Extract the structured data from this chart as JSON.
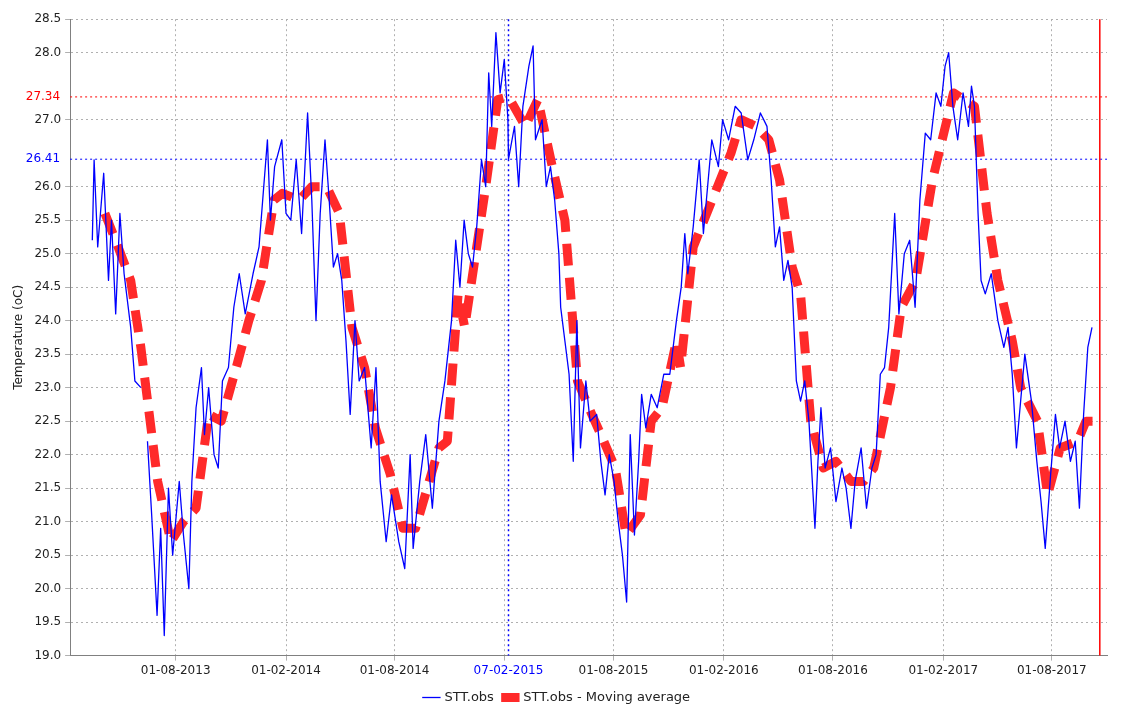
{
  "chart_data": {
    "type": "line",
    "ylabel": "Temperature (oC)",
    "xlim": [
      "2013-02-06",
      "2017-11-01"
    ],
    "ylim": [
      19,
      28.5
    ],
    "xticks": [
      {
        "value": "2013-08-01",
        "label": "01-08-2013"
      },
      {
        "value": "2014-02-01",
        "label": "01-02-2014"
      },
      {
        "value": "2014-08-01",
        "label": "01-08-2014"
      },
      {
        "value": "2015-02-01",
        "label": null
      },
      {
        "value": "2015-08-01",
        "label": "01-08-2015"
      },
      {
        "value": "2016-02-01",
        "label": "01-02-2016"
      },
      {
        "value": "2016-08-01",
        "label": "01-08-2016"
      },
      {
        "value": "2017-02-01",
        "label": "01-02-2017"
      },
      {
        "value": "2017-08-01",
        "label": "01-08-2017"
      }
    ],
    "yticks": [
      {
        "value": 19,
        "label": "19.0"
      },
      19.5,
      {
        "value": 20,
        "label": "20.0"
      },
      20.5,
      {
        "value": 21,
        "label": "21.0"
      },
      21.5,
      {
        "value": 22,
        "label": "22.0"
      },
      22.5,
      {
        "value": 23,
        "label": "23.0"
      },
      23.5,
      {
        "value": 24,
        "label": "24.0"
      },
      24.5,
      {
        "value": 25,
        "label": "25.0"
      },
      25.5,
      {
        "value": 26,
        "label": "26.0"
      },
      {
        "value": 27,
        "label": "27.0"
      },
      {
        "value": 28,
        "label": "28.0"
      },
      28.5
    ],
    "grid": true,
    "legend": "bottom",
    "marker": "none",
    "ref_lines": [
      {
        "axis": "x",
        "value": "2015-02-07",
        "label": "07-02-2015",
        "color": "#0000ff",
        "line_style": "dotted"
      },
      {
        "axis": "y",
        "value": 27.34,
        "label": "27.34",
        "color": "#ff0000",
        "line_style": "dotted"
      },
      {
        "axis": "y",
        "value": 26.41,
        "label": "26.41",
        "color": "#0000ff",
        "line_style": "dotted"
      },
      {
        "axis": "x",
        "value": "2017-10-20",
        "color": "#ff0000"
      }
    ],
    "series": [
      {
        "name": "STT.obs",
        "color": "#0000ff",
        "line_style": "solid",
        "x": [
          "2013-03-15",
          "2013-03-18",
          "2013-03-24",
          "2013-04-03",
          "2013-04-11",
          "2013-04-16",
          "2013-04-23",
          "2013-04-30",
          "2013-05-07",
          "2013-05-18",
          "2013-05-25",
          "2013-06-04",
          "2013-06-10",
          "2013-06-15",
          "2013-06-22",
          "2013-07-01",
          "2013-07-07",
          "2013-07-13",
          "2013-07-20",
          "2013-07-27",
          "2013-08-07",
          "2013-08-14",
          "2013-08-23",
          "2013-08-28",
          "2013-09-04",
          "2013-09-13",
          "2013-09-18",
          "2013-09-25",
          "2013-10-04",
          "2013-10-11",
          "2013-10-18",
          "2013-10-28",
          "2013-11-06",
          "2013-11-15",
          "2013-11-25",
          "2013-12-08",
          "2013-12-18",
          "2014-01-01",
          "2014-01-06",
          "2014-01-13",
          "2014-01-25",
          "2014-02-01",
          "2014-02-09",
          "2014-02-18",
          "2014-02-27",
          "2014-03-09",
          "2014-03-16",
          "2014-03-23",
          "2014-03-30",
          "2014-04-07",
          "2014-04-14",
          "2014-04-21",
          "2014-04-28",
          "2014-05-05",
          "2014-05-12",
          "2014-05-19",
          "2014-05-27",
          "2014-06-03",
          "2014-06-12",
          "2014-06-23",
          "2014-07-01",
          "2014-07-08",
          "2014-07-18",
          "2014-07-27",
          "2014-08-08",
          "2014-08-18",
          "2014-08-27",
          "2014-09-01",
          "2014-09-12",
          "2014-09-22",
          "2014-10-03",
          "2014-10-14",
          "2014-10-24",
          "2014-11-04",
          "2014-11-11",
          "2014-11-18",
          "2014-11-25",
          "2014-12-02",
          "2014-12-09",
          "2014-12-16",
          "2014-12-24",
          "2014-12-31",
          "2015-01-05",
          "2015-01-10",
          "2015-01-17",
          "2015-01-24",
          "2015-01-31",
          "2015-02-06",
          "2015-02-07",
          "2015-02-17",
          "2015-02-24",
          "2015-03-03",
          "2015-03-13",
          "2015-03-20",
          "2015-03-24",
          "2015-04-04",
          "2015-04-11",
          "2015-04-18",
          "2015-04-25",
          "2015-05-02",
          "2015-05-05",
          "2015-05-12",
          "2015-05-19",
          "2015-05-26",
          "2015-06-01",
          "2015-06-07",
          "2015-06-16",
          "2015-06-23",
          "2015-07-04",
          "2015-07-11",
          "2015-07-18",
          "2015-07-25",
          "2015-08-02",
          "2015-08-09",
          "2015-08-16",
          "2015-08-23",
          "2015-08-29",
          "2015-09-05",
          "2015-09-12",
          "2015-09-17",
          "2015-09-24",
          "2015-10-03",
          "2015-10-13",
          "2015-10-24",
          "2015-11-03",
          "2015-11-14",
          "2015-11-22",
          "2015-11-28",
          "2015-12-03",
          "2015-12-12",
          "2015-12-22",
          "2015-12-29",
          "2016-01-12",
          "2016-01-23",
          "2016-01-30",
          "2016-02-09",
          "2016-02-20",
          "2016-03-01",
          "2016-03-12",
          "2016-03-22",
          "2016-04-02",
          "2016-04-13",
          "2016-04-20",
          "2016-04-27",
          "2016-05-04",
          "2016-05-11",
          "2016-05-18",
          "2016-05-25",
          "2016-06-01",
          "2016-06-08",
          "2016-06-15",
          "2016-06-22",
          "2016-07-02",
          "2016-07-07",
          "2016-07-12",
          "2016-07-19",
          "2016-07-28",
          "2016-08-06",
          "2016-08-16",
          "2016-08-23",
          "2016-08-31",
          "2016-09-07",
          "2016-09-17",
          "2016-09-26",
          "2016-10-05",
          "2016-10-12",
          "2016-10-19",
          "2016-10-26",
          "2016-11-02",
          "2016-11-12",
          "2016-11-19",
          "2016-11-28",
          "2016-12-07",
          "2016-12-16",
          "2016-12-24",
          "2017-01-02",
          "2017-01-11",
          "2017-01-20",
          "2017-01-28",
          "2017-02-04",
          "2017-02-10",
          "2017-02-17",
          "2017-02-25",
          "2017-03-06",
          "2017-03-15",
          "2017-03-20",
          "2017-03-25",
          "2017-03-31",
          "2017-04-05",
          "2017-04-12",
          "2017-04-22",
          "2017-05-03",
          "2017-05-13",
          "2017-05-20",
          "2017-05-27",
          "2017-06-03",
          "2017-06-10",
          "2017-06-17",
          "2017-06-28",
          "2017-07-07",
          "2017-07-14",
          "2017-07-21",
          "2017-07-30",
          "2017-08-07",
          "2017-08-14",
          "2017-08-23",
          "2017-09-01",
          "2017-09-09",
          "2017-09-16",
          "2017-09-23",
          "2017-09-30",
          "2017-10-07"
        ],
        "values": [
          25.2,
          26.4,
          25.1,
          26.2,
          24.6,
          25.5,
          24.1,
          25.6,
          24.7,
          23.9,
          23.1,
          23.0,
          null,
          22.2,
          21.1,
          19.6,
          20.9,
          19.3,
          21.5,
          20.5,
          21.6,
          20.8,
          20.0,
          21.6,
          22.7,
          23.3,
          22.3,
          23.0,
          22.0,
          21.8,
          23.1,
          23.3,
          24.2,
          24.7,
          24.1,
          24.7,
          25.1,
          26.7,
          25.5,
          26.3,
          26.7,
          25.6,
          25.5,
          26.4,
          25.3,
          27.1,
          25.8,
          24.0,
          25.6,
          26.7,
          25.8,
          24.8,
          25.0,
          24.6,
          23.7,
          22.6,
          24.0,
          23.1,
          23.3,
          22.1,
          23.3,
          21.6,
          20.7,
          21.4,
          20.7,
          20.3,
          22.0,
          20.6,
          21.6,
          22.3,
          21.2,
          22.5,
          23.1,
          24.0,
          25.2,
          24.5,
          25.5,
          25.0,
          24.8,
          25.4,
          26.4,
          26.0,
          27.7,
          26.9,
          28.3,
          27.4,
          27.9,
          27.0,
          26.41,
          26.9,
          26.0,
          27.2,
          27.8,
          28.1,
          26.7,
          27.0,
          26.0,
          26.3,
          25.8,
          25.0,
          24.2,
          23.7,
          23.2,
          21.9,
          24.0,
          22.1,
          23.1,
          22.5,
          22.6,
          21.9,
          21.4,
          22.0,
          21.6,
          21.0,
          20.5,
          19.8,
          22.3,
          20.8,
          21.9,
          22.9,
          22.4,
          22.9,
          22.7,
          23.2,
          23.2,
          24.0,
          24.5,
          25.3,
          24.7,
          25.4,
          26.4,
          25.3,
          26.7,
          26.3,
          27.0,
          26.7,
          27.2,
          27.1,
          26.4,
          26.7,
          27.1,
          26.9,
          26.1,
          25.1,
          25.4,
          24.6,
          24.9,
          24.5,
          23.1,
          22.8,
          23.1,
          22.5,
          20.9,
          21.9,
          22.7,
          21.8,
          22.1,
          21.3,
          21.8,
          21.5,
          20.9,
          21.6,
          22.1,
          21.2,
          21.8,
          22.0,
          23.2,
          23.3,
          23.9,
          25.6,
          24.1,
          25.0,
          25.2,
          24.2,
          25.8,
          26.8,
          26.7,
          27.4,
          27.2,
          27.8,
          28.0,
          27.2,
          26.7,
          27.4,
          26.9,
          27.5,
          27.2,
          25.6,
          24.6,
          24.4,
          24.7,
          24.0,
          23.6,
          23.9,
          23.2,
          22.1,
          22.8,
          23.5,
          22.8,
          21.9,
          21.3,
          20.6,
          21.7,
          22.6,
          22.1,
          22.5,
          21.9,
          22.2,
          21.2,
          22.6,
          23.6,
          23.9
        ]
      },
      {
        "name": "STT.obs - Moving average",
        "color": "#ff2a2a",
        "line_style": "dashed",
        "x": [
          "2013-04-05",
          "2013-04-27",
          "2013-05-18",
          "2013-06-04",
          "2013-07-02",
          "2013-07-24",
          "2013-08-14",
          "2013-09-04",
          "2013-09-25",
          "2013-10-16",
          "2013-11-10",
          "2013-12-01",
          "2013-12-22",
          "2014-01-12",
          "2014-01-26",
          "2014-02-23",
          "2014-03-16",
          "2014-04-10",
          "2014-05-01",
          "2014-05-22",
          "2014-06-12",
          "2014-06-30",
          "2014-07-25",
          "2014-08-15",
          "2014-09-05",
          "2014-10-14",
          "2014-10-28",
          "2014-11-15",
          "2014-11-26",
          "2014-12-31",
          "2015-01-20",
          "2015-02-07",
          "2015-03-07",
          "2015-03-28",
          "2015-04-21",
          "2015-05-12",
          "2015-06-02",
          "2015-06-26",
          "2015-07-11",
          "2015-08-04",
          "2015-08-22",
          "2015-09-15",
          "2015-10-03",
          "2015-10-21",
          "2015-11-14",
          "2015-11-21",
          "2015-12-12",
          "2016-02-13",
          "2016-03-01",
          "2016-03-26",
          "2016-04-16",
          "2016-05-04",
          "2016-05-25",
          "2016-06-08",
          "2016-06-25",
          "2016-07-16",
          "2016-08-06",
          "2016-08-31",
          "2016-09-21",
          "2016-10-08",
          "2016-11-05",
          "2016-11-23",
          "2016-12-17",
          "2017-01-14",
          "2017-02-18",
          "2017-03-25",
          "2017-04-15",
          "2017-05-03",
          "2017-05-27",
          "2017-06-10",
          "2017-07-08",
          "2017-07-25",
          "2017-08-15",
          "2017-09-13",
          "2017-09-27",
          "2017-10-14"
        ],
        "values": [
          25.6,
          25.1,
          24.6,
          23.6,
          21.6,
          20.7,
          21.0,
          21.2,
          22.6,
          22.5,
          23.3,
          24.0,
          24.6,
          25.8,
          25.9,
          25.8,
          26.0,
          26.0,
          25.6,
          23.9,
          23.3,
          22.4,
          21.7,
          20.9,
          20.9,
          22.1,
          22.2,
          24.4,
          23.9,
          26.0,
          27.3,
          27.34,
          26.9,
          27.3,
          26.3,
          25.5,
          23.1,
          22.6,
          22.3,
          21.8,
          20.8,
          21.1,
          22.5,
          22.7,
          23.7,
          23.3,
          25.1,
          26.5,
          27.0,
          26.9,
          26.7,
          26.1,
          24.8,
          24.4,
          22.5,
          21.8,
          21.9,
          21.6,
          21.6,
          21.8,
          23.0,
          24.2,
          24.6,
          26.1,
          27.4,
          27.2,
          25.6,
          24.6,
          23.7,
          23.0,
          22.5,
          21.4,
          22.1,
          22.2,
          22.5,
          22.5
        ]
      }
    ]
  }
}
